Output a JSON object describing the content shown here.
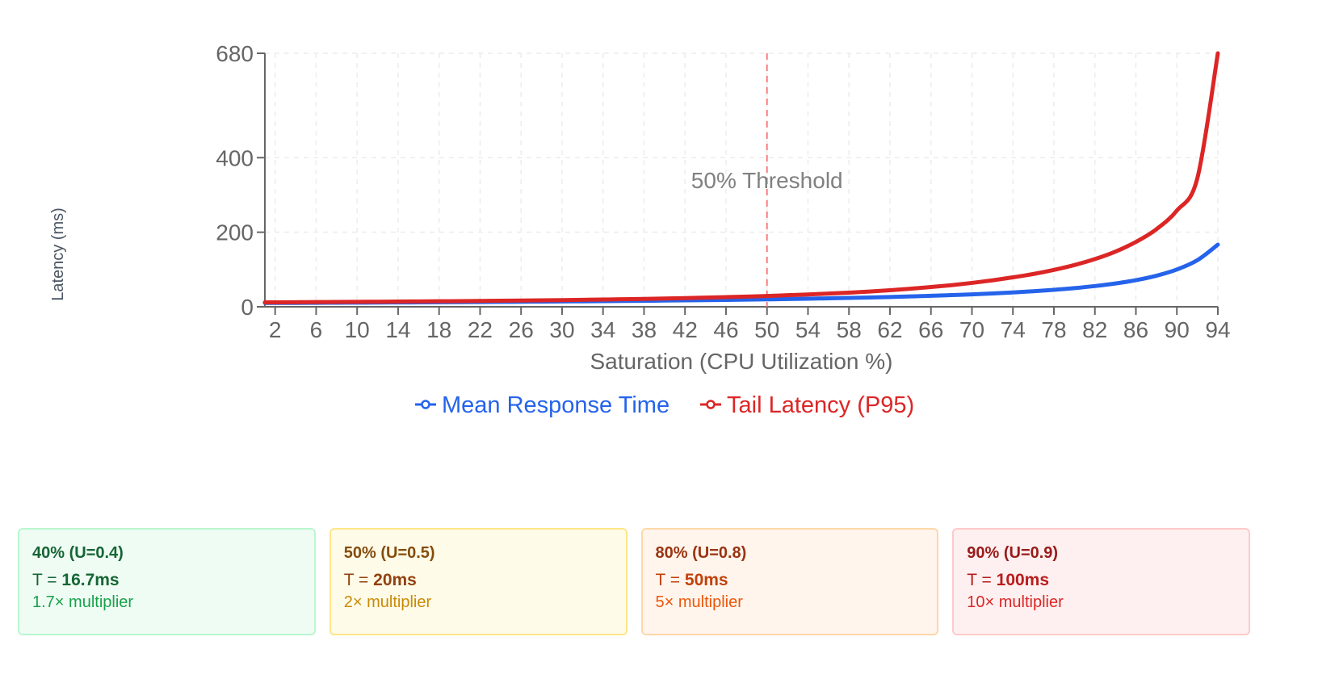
{
  "chart_data": {
    "type": "line",
    "title": "",
    "xlabel": "Saturation (CPU Utilization %)",
    "ylabel": "Latency (ms)",
    "xlim": [
      1,
      94
    ],
    "ylim": [
      0,
      680
    ],
    "y_ticks": [
      0,
      200,
      400,
      680
    ],
    "x_ticks": [
      2,
      6,
      10,
      14,
      18,
      22,
      26,
      30,
      34,
      38,
      42,
      46,
      50,
      54,
      58,
      62,
      66,
      70,
      74,
      78,
      82,
      86,
      90,
      94
    ],
    "grid": true,
    "legend_position": "bottom",
    "x": [
      2,
      4,
      6,
      8,
      10,
      12,
      14,
      16,
      18,
      20,
      22,
      24,
      26,
      28,
      30,
      32,
      34,
      36,
      38,
      40,
      42,
      44,
      46,
      48,
      50,
      52,
      54,
      56,
      58,
      60,
      62,
      64,
      66,
      68,
      70,
      72,
      74,
      76,
      78,
      80,
      82,
      84,
      86,
      88,
      90,
      92,
      94
    ],
    "series": [
      {
        "name": "Mean Response Time",
        "color": "#2563eb",
        "values": [
          10.2,
          10.4,
          10.6,
          10.9,
          11.1,
          11.4,
          11.6,
          11.9,
          12.2,
          12.5,
          12.8,
          13.2,
          13.5,
          13.9,
          14.3,
          14.7,
          15.2,
          15.6,
          16.1,
          16.7,
          17.2,
          17.9,
          18.5,
          19.2,
          20.0,
          20.8,
          21.7,
          22.7,
          23.8,
          25.0,
          26.3,
          27.8,
          29.4,
          31.3,
          33.3,
          35.7,
          38.5,
          41.7,
          45.5,
          50.0,
          55.6,
          62.5,
          71.4,
          83.3,
          100.0,
          125.0,
          166.7
        ]
      },
      {
        "name": "Tail Latency (P95)",
        "color": "#dc2626",
        "values": [
          12,
          12.3,
          12.6,
          13,
          13.3,
          13.6,
          14,
          14.4,
          14.8,
          15.2,
          15.7,
          16.2,
          16.8,
          17.4,
          18,
          18.7,
          19.5,
          20.3,
          21.2,
          22.2,
          23.3,
          24.5,
          25.9,
          27.4,
          29,
          31,
          33,
          35.5,
          38,
          41,
          44.5,
          48.5,
          53,
          58,
          64,
          71,
          79,
          88,
          99,
          112,
          128,
          148,
          174,
          208,
          258,
          345,
          680
        ]
      }
    ],
    "annotations": [
      {
        "type": "vertical-line",
        "x": 50,
        "label": "50% Threshold",
        "color": "#f87171"
      }
    ]
  },
  "chart_labels": {
    "xlabel": "Saturation (CPU Utilization %)",
    "ylabel": "Latency (ms)",
    "threshold": "50% Threshold",
    "legend": [
      "Mean Response Time",
      "Tail Latency (P95)"
    ]
  },
  "cards": [
    {
      "title": "40% (U=0.4)",
      "t_prefix": "T = ",
      "t_value": "16.7ms",
      "multiplier": "1.7× multiplier",
      "bg": "#effcf4",
      "border": "#bbf7d0",
      "title_color": "#166534",
      "t_color": "#166534",
      "mult_color": "#16a34a"
    },
    {
      "title": "50% (U=0.5)",
      "t_prefix": "T = ",
      "t_value": "20ms",
      "multiplier": "2× multiplier",
      "bg": "#fefbe8",
      "border": "#fde68a",
      "title_color": "#854d0e",
      "t_color": "#92400e",
      "mult_color": "#ca8a04"
    },
    {
      "title": "80% (U=0.8)",
      "t_prefix": "T = ",
      "t_value": "50ms",
      "multiplier": "5× multiplier",
      "bg": "#fff5ed",
      "border": "#fed7aa",
      "title_color": "#9a3412",
      "t_color": "#c2410c",
      "mult_color": "#ea580c"
    },
    {
      "title": "90% (U=0.9)",
      "t_prefix": "T = ",
      "t_value": "100ms",
      "multiplier": "10× multiplier",
      "bg": "#fef0f0",
      "border": "#fecaca",
      "title_color": "#991b1b",
      "t_color": "#b91c1c",
      "mult_color": "#dc2626"
    }
  ]
}
